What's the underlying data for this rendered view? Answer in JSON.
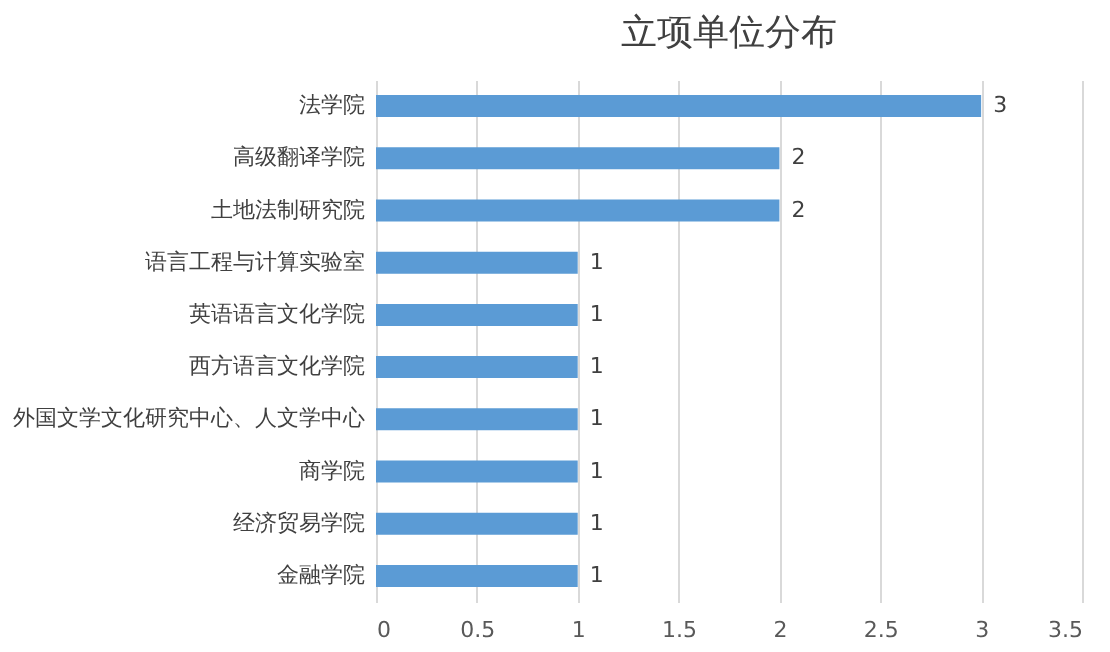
{
  "chart_data": {
    "type": "bar",
    "orientation": "horizontal",
    "title": "立项单位分布",
    "categories": [
      "法学院",
      "高级翻译学院",
      "土地法制研究院",
      "语言工程与计算实验室",
      "英语语言文化学院",
      "西方语言文化学院",
      "外国文学文化研究中心、人文学中心",
      "商学院",
      "经济贸易学院",
      "金融学院"
    ],
    "values": [
      3,
      2,
      2,
      1,
      1,
      1,
      1,
      1,
      1,
      1
    ],
    "color": "#5b9bd5",
    "xlim": [
      0,
      3.5
    ],
    "xticks": [
      0,
      0.5,
      1,
      1.5,
      2,
      2.5,
      3,
      3.5
    ],
    "grid": "x",
    "data_labels": true
  }
}
